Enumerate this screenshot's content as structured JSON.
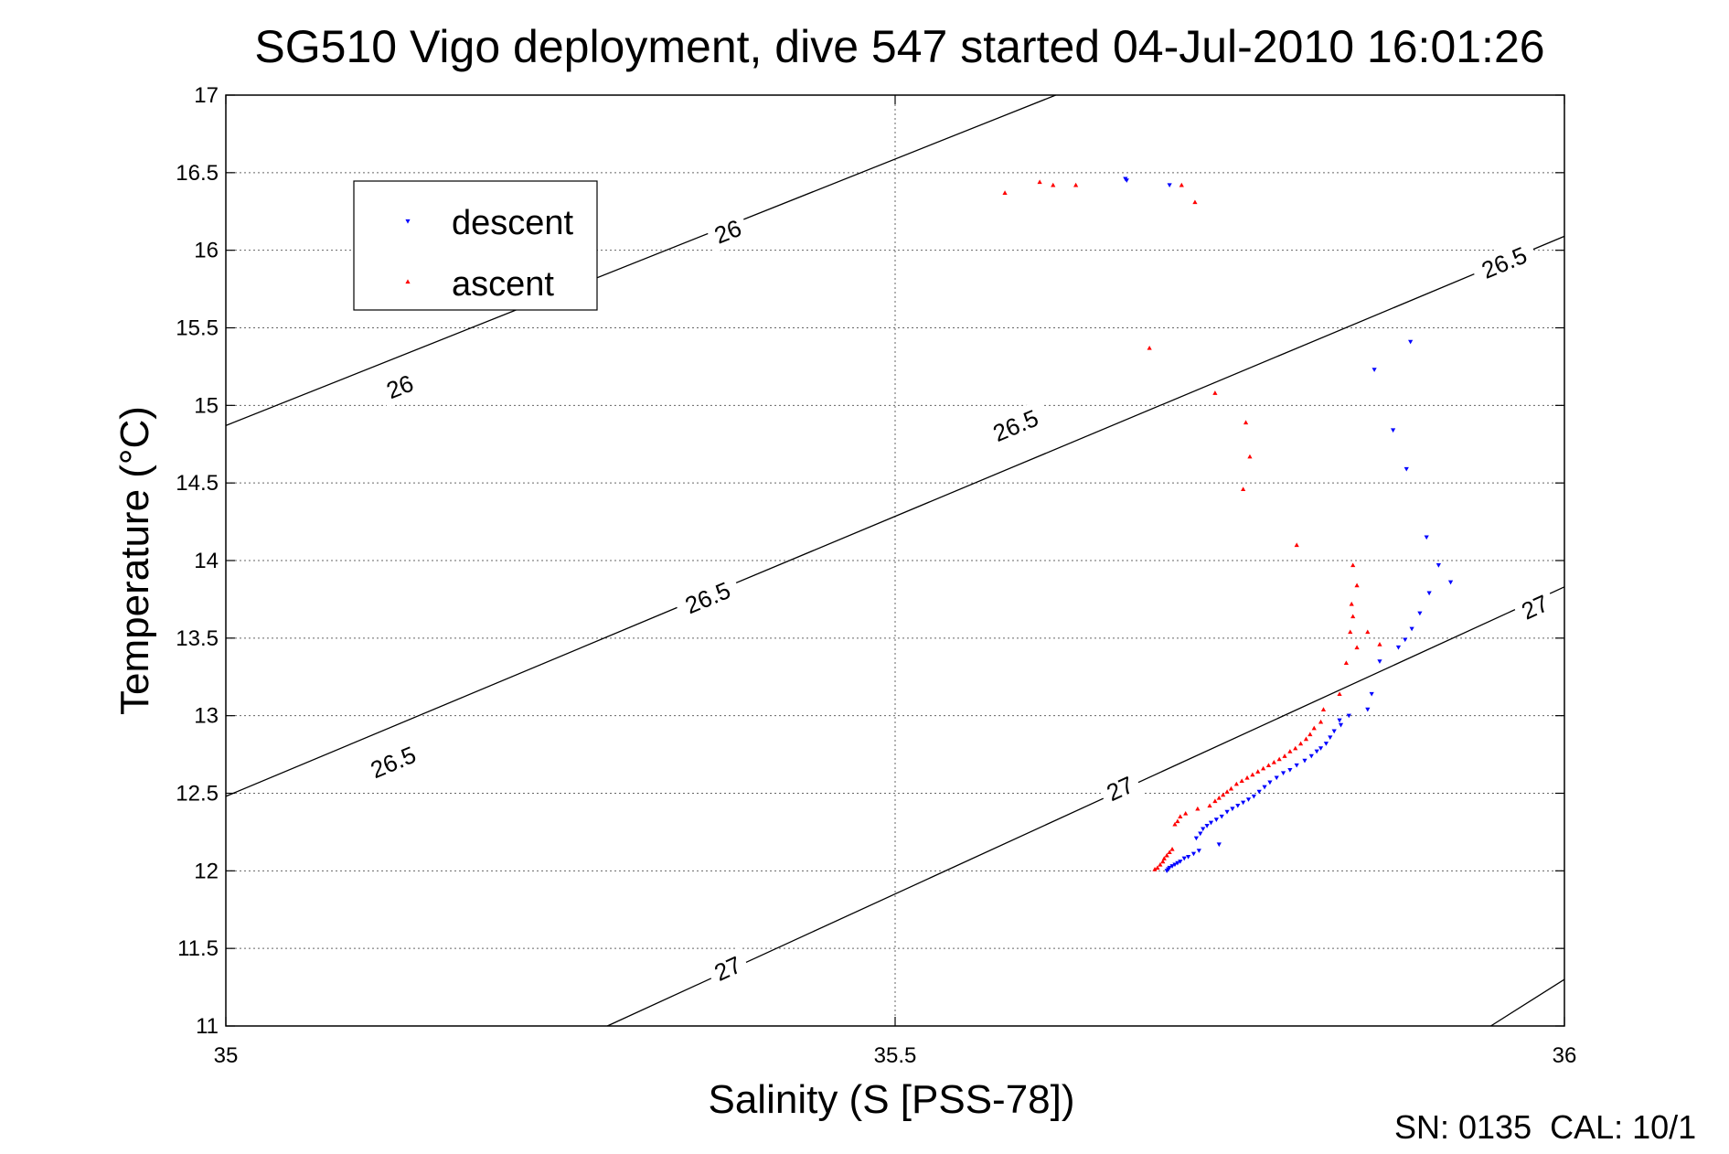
{
  "chart_data": {
    "type": "scatter",
    "title": "SG510 Vigo deployment, dive 547 started 04-Jul-2010 16:01:26",
    "xlabel": "Salinity (S [PSS-78])",
    "ylabel": "Temperature (°C)",
    "xlim": [
      35,
      36
    ],
    "ylim": [
      11,
      17
    ],
    "x_ticks": [
      "35",
      "35.5",
      "36"
    ],
    "y_ticks": [
      "11",
      "11.5",
      "12",
      "12.5",
      "13",
      "13.5",
      "14",
      "14.5",
      "15",
      "15.5",
      "16",
      "16.5",
      "17"
    ],
    "grid": true,
    "legend_position": "top-left",
    "footer": "SN: 0135  CAL: 10/1",
    "series": [
      {
        "name": "descent",
        "color": "#0000ff",
        "marker": "triangle-down",
        "x": [
          35.672,
          35.673,
          35.705,
          35.858,
          35.872,
          35.882,
          35.885,
          35.897,
          35.906,
          35.915,
          35.899,
          35.892,
          35.886,
          35.881,
          35.876,
          35.862,
          35.856,
          35.853,
          35.839,
          35.832,
          35.833,
          35.828,
          35.825,
          35.822,
          35.818,
          35.815,
          35.811,
          35.806,
          35.8,
          35.795,
          35.79,
          35.785,
          35.78,
          35.776,
          35.772,
          35.768,
          35.764,
          35.76,
          35.756,
          35.752,
          35.748,
          35.744,
          35.74,
          35.736,
          35.733,
          35.73,
          35.728,
          35.725,
          35.742,
          35.727,
          35.723,
          35.719,
          35.716,
          35.713,
          35.711,
          35.709,
          35.707,
          35.705,
          35.704,
          35.703
        ],
        "y": [
          16.46,
          16.45,
          16.42,
          15.23,
          14.84,
          14.59,
          15.41,
          14.15,
          13.97,
          13.86,
          13.79,
          13.66,
          13.56,
          13.49,
          13.44,
          13.35,
          13.14,
          13.04,
          13.0,
          12.97,
          12.94,
          12.9,
          12.86,
          12.82,
          12.79,
          12.77,
          12.74,
          12.71,
          12.68,
          12.65,
          12.63,
          12.6,
          12.57,
          12.54,
          12.51,
          12.48,
          12.46,
          12.44,
          12.42,
          12.4,
          12.38,
          12.35,
          12.33,
          12.31,
          12.29,
          12.27,
          12.24,
          12.21,
          12.17,
          12.13,
          12.11,
          12.09,
          12.08,
          12.06,
          12.05,
          12.04,
          12.03,
          12.02,
          12.01,
          12.0
        ]
      },
      {
        "name": "ascent",
        "color": "#ff0000",
        "marker": "triangle-up",
        "x": [
          35.582,
          35.608,
          35.618,
          35.635,
          35.714,
          35.724,
          35.69,
          35.739,
          35.762,
          35.765,
          35.76,
          35.8,
          35.842,
          35.845,
          35.841,
          35.842,
          35.84,
          35.845,
          35.853,
          35.862,
          35.837,
          35.832,
          35.82,
          35.818,
          35.813,
          35.81,
          35.807,
          35.803,
          35.799,
          35.795,
          35.791,
          35.787,
          35.783,
          35.779,
          35.775,
          35.771,
          35.767,
          35.763,
          35.759,
          35.755,
          35.751,
          35.748,
          35.745,
          35.742,
          35.739,
          35.735,
          35.726,
          35.717,
          35.713,
          35.711,
          35.709,
          35.707,
          35.705,
          35.703,
          35.701,
          35.7,
          35.698,
          35.696,
          35.694
        ],
        "y": [
          16.37,
          16.44,
          16.42,
          16.42,
          16.42,
          16.31,
          15.37,
          15.08,
          14.89,
          14.67,
          14.46,
          14.1,
          13.97,
          13.84,
          13.72,
          13.64,
          13.54,
          13.44,
          13.54,
          13.46,
          13.34,
          13.14,
          13.04,
          12.96,
          12.92,
          12.88,
          12.85,
          12.82,
          12.79,
          12.77,
          12.74,
          12.72,
          12.7,
          12.68,
          12.66,
          12.64,
          12.62,
          12.6,
          12.58,
          12.56,
          12.53,
          12.51,
          12.49,
          12.47,
          12.45,
          12.42,
          12.4,
          12.37,
          12.35,
          12.32,
          12.3,
          12.14,
          12.12,
          12.1,
          12.08,
          12.06,
          12.04,
          12.02,
          12.01
        ]
      }
    ],
    "contours": [
      {
        "label": "26",
        "points": [
          [
            35.0,
            14.87
          ],
          [
            35.62,
            17.0
          ]
        ],
        "label_at": [
          [
            35.13,
            15.12
          ],
          [
            35.375,
            16.12
          ]
        ]
      },
      {
        "label": "26.5",
        "points": [
          [
            35.0,
            12.48
          ],
          [
            36.0,
            16.09
          ]
        ],
        "label_at": [
          [
            35.125,
            12.7
          ],
          [
            35.36,
            13.76
          ],
          [
            35.59,
            14.87
          ],
          [
            35.955,
            15.92
          ]
        ]
      },
      {
        "label": "27",
        "points": [
          [
            35.285,
            11.0
          ],
          [
            36.0,
            13.83
          ]
        ],
        "label_at": [
          [
            35.375,
            11.37
          ],
          [
            35.668,
            12.53
          ],
          [
            35.978,
            13.7
          ]
        ]
      },
      {
        "label": "",
        "points": [
          [
            35.945,
            11.0
          ],
          [
            36.0,
            11.3
          ]
        ],
        "label_at": []
      }
    ]
  }
}
